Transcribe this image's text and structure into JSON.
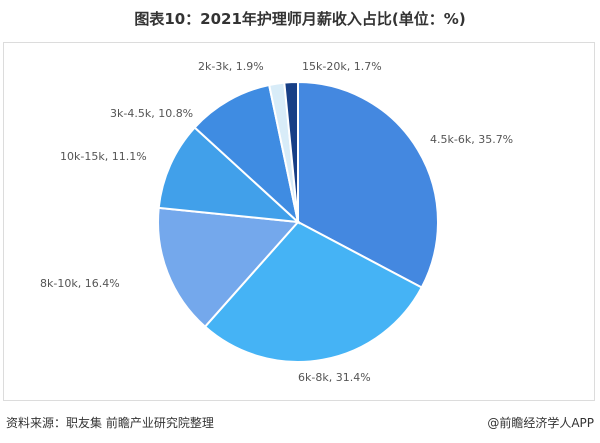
{
  "title": "图表10：2021年护理师月薪收入占比(单位：%)",
  "footer": {
    "source": "资料来源：职友集 前瞻产业研究院整理",
    "credit": "@前瞻经济学人APP"
  },
  "chart_data": {
    "type": "pie",
    "title": "图表10：2021年护理师月薪收入占比(单位：%)",
    "start_angle": "12 o'clock, clockwise",
    "categories": [
      "4.5k-6k",
      "6k-8k",
      "8k-10k",
      "10k-15k",
      "3k-4.5k",
      "2k-3k",
      "15k-20k"
    ],
    "values": [
      35.7,
      31.4,
      16.4,
      11.1,
      10.8,
      1.9,
      1.7
    ],
    "labels": [
      "4.5k-6k, 35.7%",
      "6k-8k, 31.4%",
      "8k-10k, 16.4%",
      "10k-15k, 11.1%",
      "3k-4.5k, 10.8%",
      "2k-3k, 1.9%",
      "15k-20k, 1.7%"
    ],
    "colors": [
      "#4488e0",
      "#45b3f5",
      "#74a8ec",
      "#41a0ea",
      "#3f8ce2",
      "#d8ecf8",
      "#173f86"
    ],
    "legend": "none (inline labels)"
  }
}
